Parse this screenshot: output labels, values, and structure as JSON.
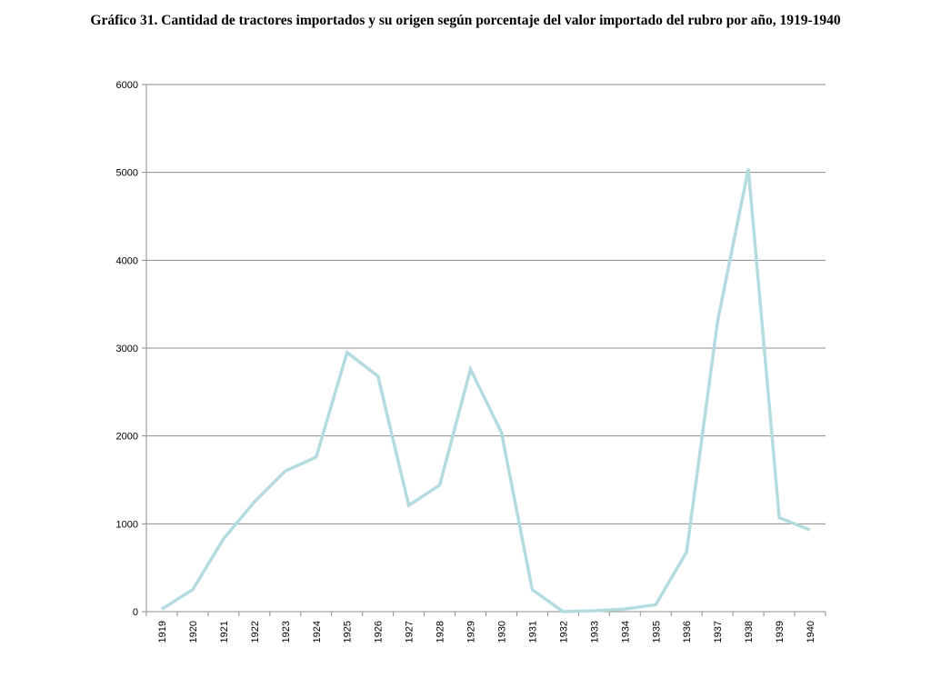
{
  "chart_data": {
    "type": "line",
    "title": "Gráfico 31. Cantidad de tractores importados y su origen según porcentaje del valor importado del rubro por año, 1919-1940",
    "xlabel": "",
    "ylabel": "",
    "categories": [
      "1919",
      "1920",
      "1921",
      "1922",
      "1923",
      "1924",
      "1925",
      "1926",
      "1927",
      "1928",
      "1929",
      "1930",
      "1931",
      "1932",
      "1933",
      "1934",
      "1935",
      "1936",
      "1937",
      "1938",
      "1939",
      "1940"
    ],
    "series": [
      {
        "values": [
          30,
          250,
          830,
          1250,
          1600,
          1760,
          2950,
          2680,
          1210,
          1440,
          2760,
          2040,
          250,
          0,
          10,
          30,
          80,
          680,
          3300,
          5040,
          1070,
          930
        ],
        "color": "#b4dce0"
      }
    ],
    "ylim": [
      0,
      6000
    ],
    "yticks": [
      0,
      1000,
      2000,
      3000,
      4000,
      5000,
      6000
    ],
    "grid": true,
    "gridline_color": "#8c8c8c",
    "axis_color": "#8c8c8c",
    "legend": "none"
  }
}
